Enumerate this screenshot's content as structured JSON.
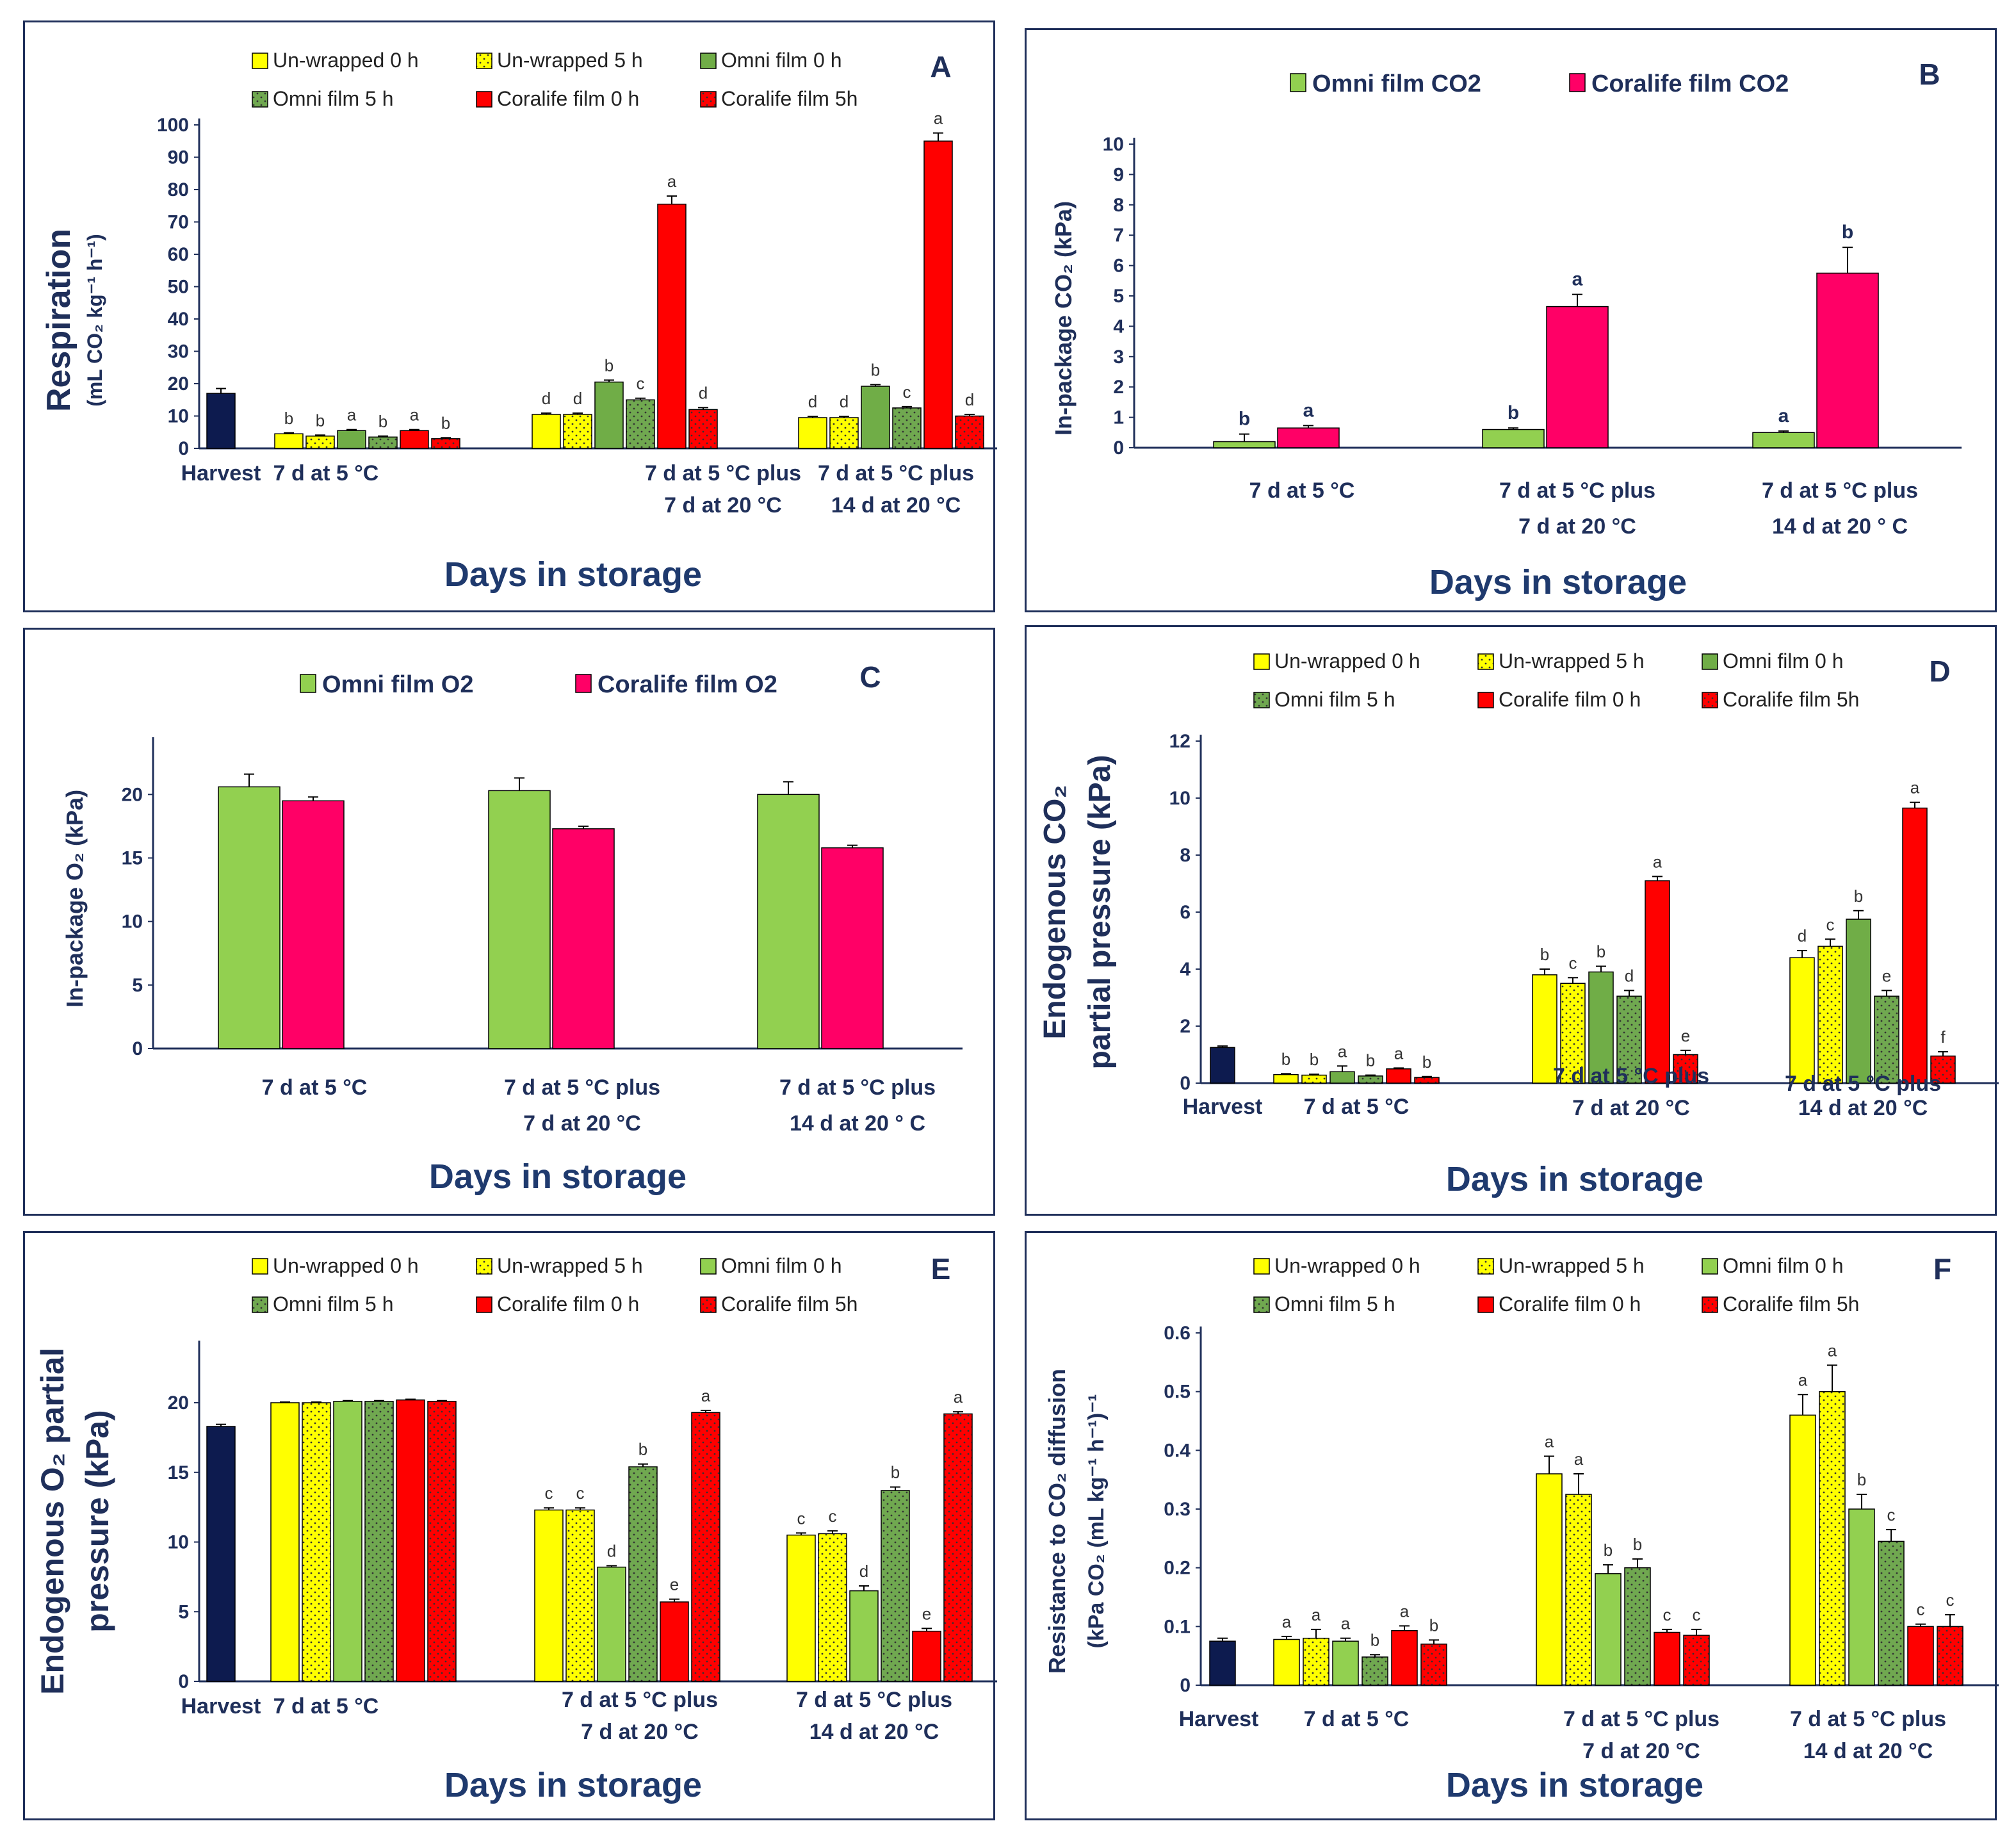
{
  "figure": {
    "x_title": "Days in storage",
    "colors": {
      "harvest": "#0d1b4f",
      "yellow": "#ffff00",
      "green_light": "#92d050",
      "green_dark": "#70a850",
      "red": "#ff0000",
      "pink": "#ff0066",
      "axis": "#1f2f5a"
    }
  },
  "chart_data": [
    {
      "id": "A",
      "type": "bar",
      "letter": "A",
      "ylabel_line1": "Respiration",
      "ylabel_line2": "(mL CO₂ kg⁻¹ h⁻¹)",
      "xlabel": "Days in storage",
      "ylim": [
        0,
        100
      ],
      "yticks": [
        0,
        10,
        20,
        30,
        40,
        50,
        60,
        70,
        80,
        90,
        100
      ],
      "legend": [
        "Un-wrapped 0 h",
        "Un-wrapped 5 h",
        "Omni film 0 h",
        "Omni film 5 h",
        "Coralife film 0 h",
        "Coralife film 5h"
      ],
      "harvest": {
        "label": "Harvest",
        "value": 17,
        "err": 1.5
      },
      "categories": [
        {
          "line1": "7 d at 5 °C",
          "line2": ""
        },
        {
          "line1": "7 d at 5 °C plus",
          "line2": "7 d at 20 °C"
        },
        {
          "line1": "7 d at 5 °C plus",
          "line2": "14 d at 20 °C"
        }
      ],
      "series": [
        {
          "name": "Un-wrapped 0 h",
          "values": [
            4.5,
            10.5,
            9.5
          ],
          "err": [
            0.3,
            0.4,
            0.4
          ],
          "letters": [
            "b",
            "d",
            "d"
          ]
        },
        {
          "name": "Un-wrapped 5 h",
          "values": [
            3.8,
            10.5,
            9.5
          ],
          "err": [
            0.3,
            0.4,
            0.4
          ],
          "letters": [
            "b",
            "d",
            "d"
          ]
        },
        {
          "name": "Omni film 0 h",
          "values": [
            5.5,
            20.5,
            19.2
          ],
          "err": [
            0.3,
            0.6,
            0.5
          ],
          "letters": [
            "a",
            "b",
            "b"
          ]
        },
        {
          "name": "Omni film 5 h",
          "values": [
            3.5,
            15,
            12.5
          ],
          "err": [
            0.3,
            0.5,
            0.4
          ],
          "letters": [
            "b",
            "c",
            "c"
          ]
        },
        {
          "name": "Coralife film 0 h",
          "values": [
            5.5,
            75.5,
            95
          ],
          "err": [
            0.3,
            2.5,
            2.5
          ],
          "letters": [
            "a",
            "a",
            "a"
          ]
        },
        {
          "name": "Coralife film 5h",
          "values": [
            3,
            12,
            10
          ],
          "err": [
            0.3,
            0.6,
            0.5
          ],
          "letters": [
            "b",
            "d",
            "d"
          ]
        }
      ]
    },
    {
      "id": "B",
      "type": "bar",
      "letter": "B",
      "ylabel_line1": "In-package CO₂ (kPa)",
      "ylabel_line2": "",
      "xlabel": "Days in storage",
      "ylim": [
        0,
        10
      ],
      "yticks": [
        0,
        1,
        2,
        3,
        4,
        5,
        6,
        7,
        8,
        9,
        10
      ],
      "legend": [
        "Omni film CO2",
        "Coralife film CO2"
      ],
      "categories": [
        {
          "line1": "7 d at 5 °C",
          "line2": ""
        },
        {
          "line1": "7 d at 5 °C plus",
          "line2": "7 d at 20 °C"
        },
        {
          "line1": "7 d at 5 °C plus",
          "line2": "14 d at 20 ° C"
        }
      ],
      "series": [
        {
          "name": "Omni film CO2",
          "values": [
            0.2,
            0.6,
            0.5
          ],
          "err": [
            0.25,
            0.05,
            0.05
          ],
          "letters": [
            "b",
            "b",
            "a"
          ]
        },
        {
          "name": "Coralife film CO2",
          "values": [
            0.65,
            4.65,
            5.75
          ],
          "err": [
            0.08,
            0.4,
            0.85
          ],
          "letters": [
            "a",
            "a",
            "b"
          ]
        }
      ]
    },
    {
      "id": "C",
      "type": "bar",
      "letter": "C",
      "ylabel_line1": "In-package O₂ (kPa)",
      "ylabel_line2": "",
      "xlabel": "Days in storage",
      "ylim": [
        0,
        24
      ],
      "yticks": [
        0,
        5,
        10,
        15,
        20
      ],
      "legend": [
        "Omni film O2",
        "Coralife film O2"
      ],
      "categories": [
        {
          "line1": "7 d at 5 °C",
          "line2": ""
        },
        {
          "line1": "7 d at 5 °C plus",
          "line2": "7 d at 20 °C"
        },
        {
          "line1": "7 d at 5 °C plus",
          "line2": "14 d at 20 ° C"
        }
      ],
      "series": [
        {
          "name": "Omni film O2",
          "values": [
            20.6,
            20.3,
            20.0
          ],
          "err": [
            1.0,
            1.0,
            1.0
          ],
          "letters": [
            "",
            "",
            ""
          ]
        },
        {
          "name": "Coralife film O2",
          "values": [
            19.5,
            17.3,
            15.8
          ],
          "err": [
            0.3,
            0.2,
            0.2
          ],
          "letters": [
            "",
            "",
            ""
          ]
        }
      ]
    },
    {
      "id": "D",
      "type": "bar",
      "letter": "D",
      "ylabel_line1": "Endogenous CO₂",
      "ylabel_line2": "partial pressure (kPa)",
      "xlabel": "Days in storage",
      "ylim": [
        0,
        12
      ],
      "yticks": [
        0,
        2,
        4,
        6,
        8,
        10,
        12
      ],
      "legend": [
        "Un-wrapped 0 h",
        "Un-wrapped 5 h",
        "Omni film 0 h",
        "Omni film 5 h",
        "Coralife film 0 h",
        "Coralife film 5h"
      ],
      "harvest": {
        "label": "Harvest",
        "value": 1.25,
        "err": 0.05
      },
      "categories": [
        {
          "line1": "7 d at 5 °C",
          "line2": ""
        },
        {
          "line1": "7 d at 5 °C plus",
          "line2": "7 d at 20 °C"
        },
        {
          "line1": "7 d at 5 °C plus",
          "line2": "14 d at 20 °C"
        }
      ],
      "series": [
        {
          "name": "Un-wrapped 0 h",
          "values": [
            0.3,
            3.8,
            4.4
          ],
          "err": [
            0.03,
            0.2,
            0.25
          ],
          "letters": [
            "b",
            "b",
            "d"
          ]
        },
        {
          "name": "Un-wrapped 5 h",
          "values": [
            0.28,
            3.5,
            4.8
          ],
          "err": [
            0.03,
            0.2,
            0.25
          ],
          "letters": [
            "b",
            "c",
            "c"
          ]
        },
        {
          "name": "Omni film 0 h",
          "values": [
            0.4,
            3.9,
            5.75
          ],
          "err": [
            0.2,
            0.2,
            0.3
          ],
          "letters": [
            "a",
            "b",
            "b"
          ]
        },
        {
          "name": "Omni film 5 h",
          "values": [
            0.25,
            3.05,
            3.05
          ],
          "err": [
            0.03,
            0.2,
            0.2
          ],
          "letters": [
            "b",
            "d",
            "e"
          ]
        },
        {
          "name": "Coralife film 0 h",
          "values": [
            0.5,
            7.1,
            9.65
          ],
          "err": [
            0.03,
            0.15,
            0.2
          ],
          "letters": [
            "a",
            "a",
            "a"
          ]
        },
        {
          "name": "Coralife film 5h",
          "values": [
            0.2,
            1.0,
            0.95
          ],
          "err": [
            0.03,
            0.15,
            0.15
          ],
          "letters": [
            "b",
            "e",
            "f"
          ]
        }
      ]
    },
    {
      "id": "E",
      "type": "bar",
      "letter": "E",
      "ylabel_line1": "Endogenous O₂ partial",
      "ylabel_line2": "pressure (kPa)",
      "xlabel": "Days in storage",
      "ylim": [
        0,
        24
      ],
      "yticks": [
        0,
        5,
        10,
        15,
        20
      ],
      "legend": [
        "Un-wrapped 0 h",
        "Un-wrapped 5 h",
        "Omni film 0 h",
        "Omni film 5 h",
        "Coralife film 0 h",
        "Coralife film 5h"
      ],
      "harvest": {
        "label": "Harvest",
        "value": 18.3,
        "err": 0.15
      },
      "categories": [
        {
          "line1": "7 d at 5 °C",
          "line2": ""
        },
        {
          "line1": "7 d at 5 °C plus",
          "line2": "7 d at 20 °C"
        },
        {
          "line1": "7 d at 5 °C plus",
          "line2": "14 d at 20 °C"
        }
      ],
      "series": [
        {
          "name": "Un-wrapped 0 h",
          "values": [
            20.0,
            12.3,
            10.5
          ],
          "err": [
            0.05,
            0.15,
            0.15
          ],
          "letters": [
            "",
            "c",
            "c"
          ]
        },
        {
          "name": "Un-wrapped 5 h",
          "values": [
            20.0,
            12.3,
            10.6
          ],
          "err": [
            0.05,
            0.15,
            0.2
          ],
          "letters": [
            "",
            "c",
            "c"
          ]
        },
        {
          "name": "Omni film 0 h",
          "values": [
            20.1,
            8.2,
            6.5
          ],
          "err": [
            0.05,
            0.1,
            0.35
          ],
          "letters": [
            "",
            "d",
            "d"
          ]
        },
        {
          "name": "Omni film 5 h",
          "values": [
            20.1,
            15.4,
            13.7
          ],
          "err": [
            0.05,
            0.2,
            0.25
          ],
          "letters": [
            "",
            "b",
            "b"
          ]
        },
        {
          "name": "Coralife film 0 h",
          "values": [
            20.2,
            5.7,
            3.6
          ],
          "err": [
            0.05,
            0.2,
            0.2
          ],
          "letters": [
            "",
            "e",
            "e"
          ]
        },
        {
          "name": "Coralife film 5h",
          "values": [
            20.1,
            19.3,
            19.2
          ],
          "err": [
            0.05,
            0.15,
            0.15
          ],
          "letters": [
            "",
            "a",
            "a"
          ]
        }
      ]
    },
    {
      "id": "F",
      "type": "bar",
      "letter": "F",
      "ylabel_line1": "Resistance to CO₂ diffusion",
      "ylabel_line2": "(kPa CO₂ (mL kg⁻¹ h⁻¹)⁻¹",
      "xlabel": "Days in storage",
      "ylim": [
        0,
        0.6
      ],
      "yticks": [
        0,
        0.1,
        0.2,
        0.3,
        0.4,
        0.5,
        0.6
      ],
      "legend": [
        "Un-wrapped 0 h",
        "Un-wrapped 5 h",
        "Omni film 0 h",
        "Omni film 5 h",
        "Coralife film 0 h",
        "Coralife film 5h"
      ],
      "harvest": {
        "label": "Harvest",
        "value": 0.075,
        "err": 0.005
      },
      "categories": [
        {
          "line1": "7 d at 5 °C",
          "line2": ""
        },
        {
          "line1": "7 d at 5 °C plus",
          "line2": "7 d at 20 °C"
        },
        {
          "line1": "7 d at 5 °C plus",
          "line2": "14 d at 20 °C"
        }
      ],
      "series": [
        {
          "name": "Un-wrapped 0 h",
          "values": [
            0.078,
            0.36,
            0.46
          ],
          "err": [
            0.005,
            0.03,
            0.035
          ],
          "letters": [
            "a",
            "a",
            "a"
          ]
        },
        {
          "name": "Un-wrapped 5 h",
          "values": [
            0.08,
            0.325,
            0.5
          ],
          "err": [
            0.015,
            0.035,
            0.045
          ],
          "letters": [
            "a",
            "a",
            "a"
          ]
        },
        {
          "name": "Omni film 0 h",
          "values": [
            0.075,
            0.19,
            0.3
          ],
          "err": [
            0.005,
            0.015,
            0.025
          ],
          "letters": [
            "a",
            "b",
            "b"
          ]
        },
        {
          "name": "Omni film 5 h",
          "values": [
            0.048,
            0.2,
            0.245
          ],
          "err": [
            0.004,
            0.015,
            0.02
          ],
          "letters": [
            "b",
            "b",
            "c"
          ]
        },
        {
          "name": "Coralife film 0 h",
          "values": [
            0.093,
            0.09,
            0.1
          ],
          "err": [
            0.008,
            0.005,
            0.004
          ],
          "letters": [
            "a",
            "c",
            "c"
          ]
        },
        {
          "name": "Coralife film 5h",
          "values": [
            0.07,
            0.085,
            0.1
          ],
          "err": [
            0.007,
            0.01,
            0.02
          ],
          "letters": [
            "b",
            "c",
            "c"
          ]
        }
      ]
    }
  ]
}
